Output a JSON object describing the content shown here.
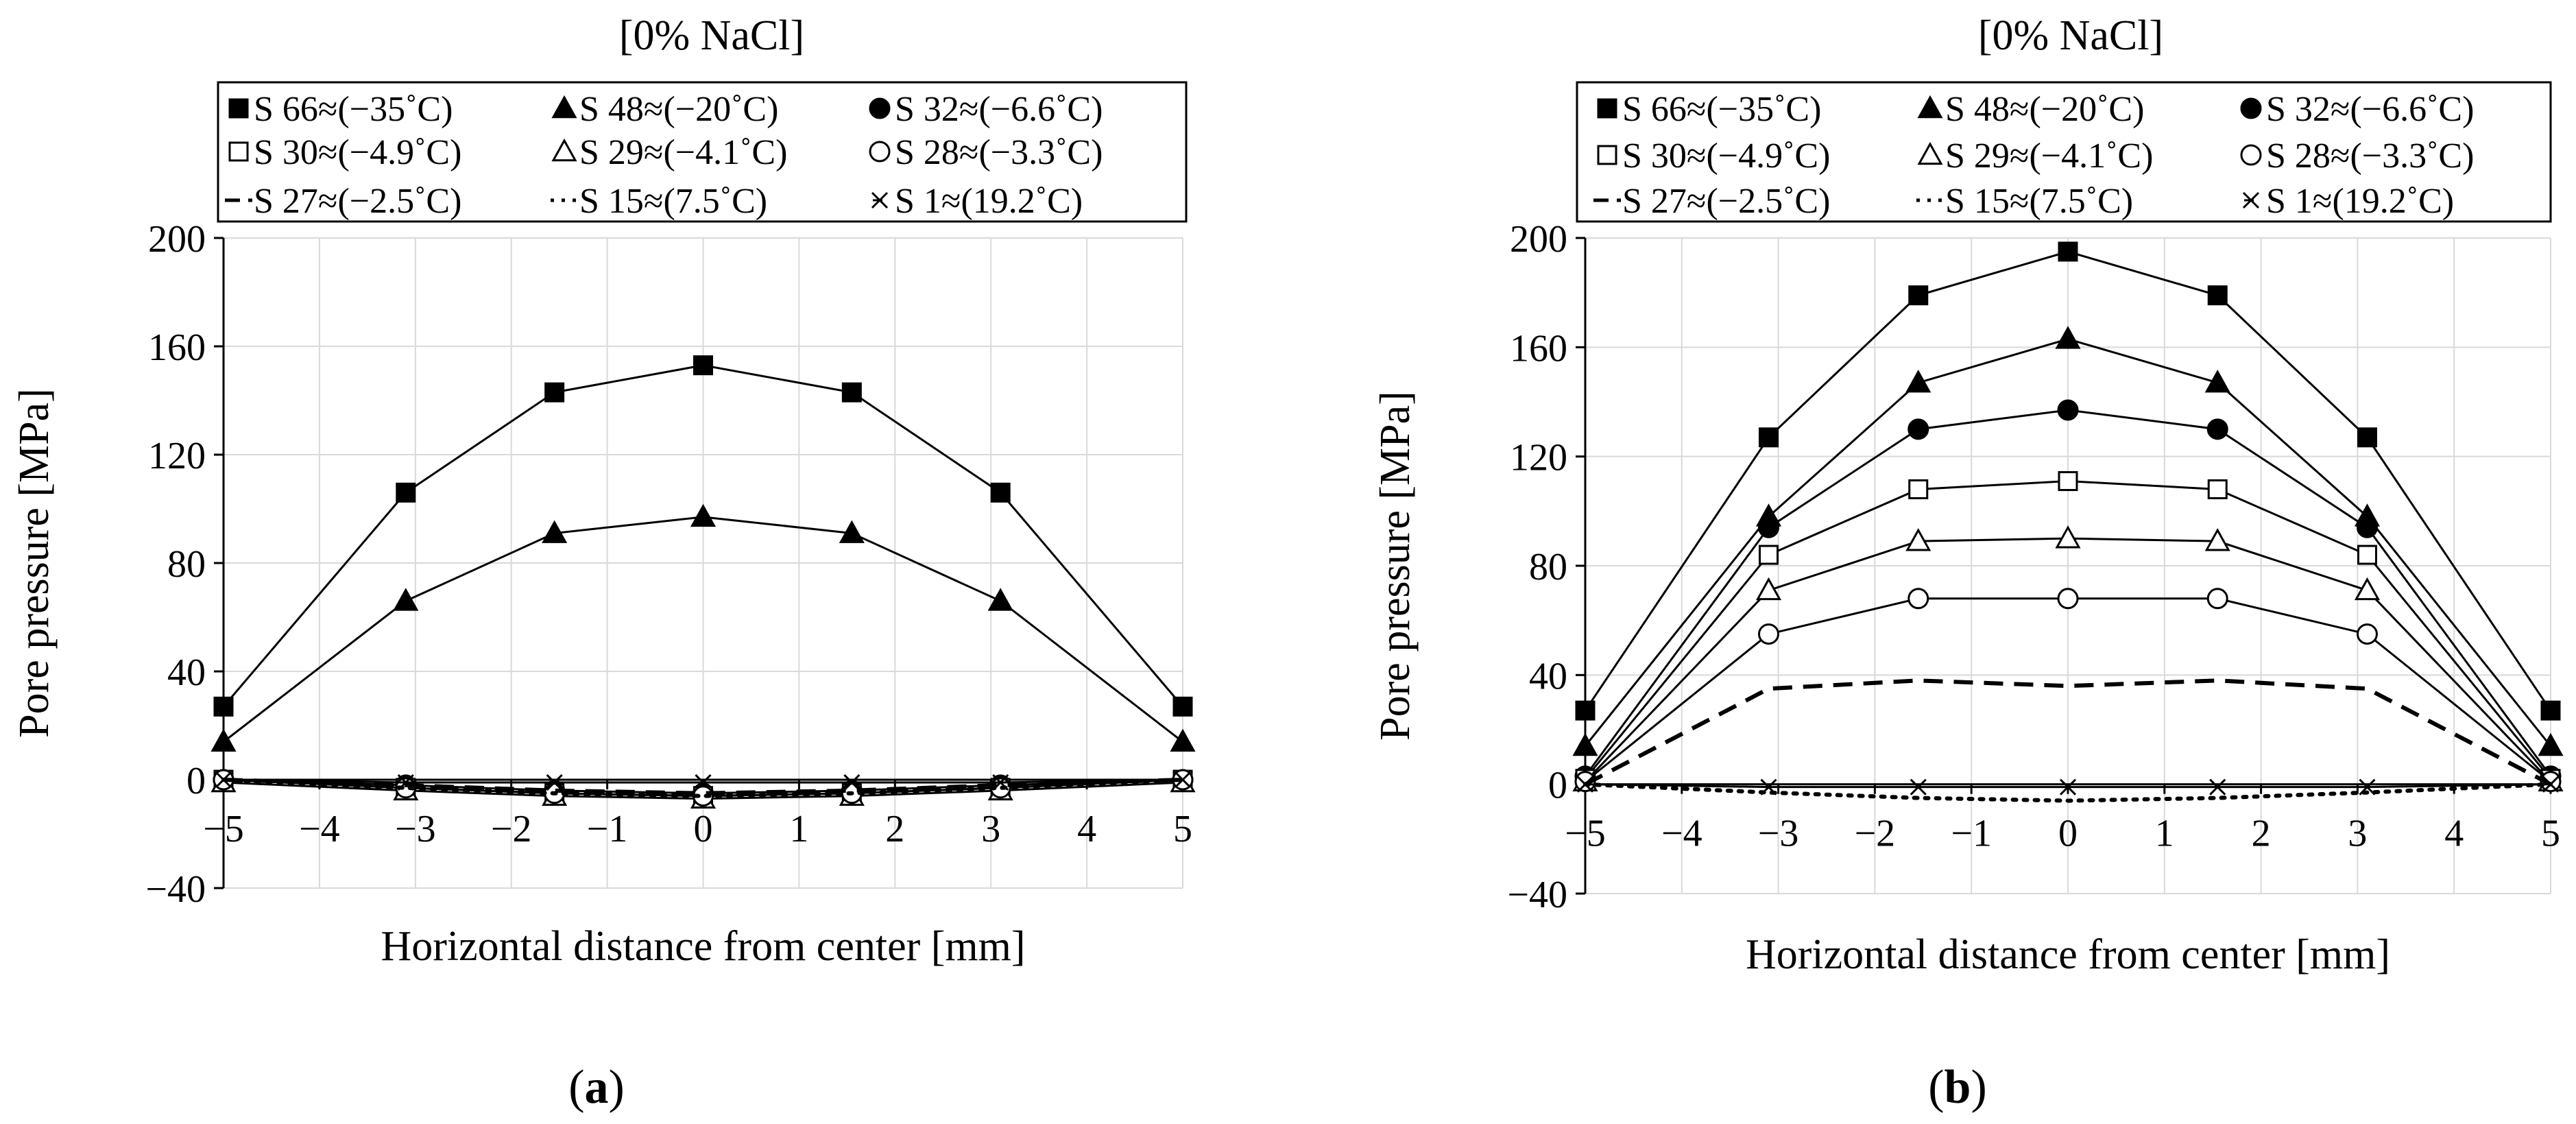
{
  "figure": {
    "panels": [
      {
        "label_open": "(",
        "label_letter": "a",
        "label_close": ")"
      },
      {
        "label_open": "(",
        "label_letter": "b",
        "label_close": ")"
      }
    ]
  },
  "chart_data": [
    {
      "type": "line",
      "title": "[0% NaCl]",
      "xlabel": "Horizontal distance from center [mm]",
      "ylabel": "Pore pressure [MPa]",
      "xlim": [
        -5,
        5
      ],
      "ylim": [
        -40,
        200
      ],
      "xticks": [
        -5,
        -4,
        -3,
        -2,
        -1,
        0,
        1,
        2,
        3,
        4,
        5
      ],
      "yticks": [
        -40,
        0,
        40,
        80,
        120,
        160,
        200
      ],
      "grid": true,
      "legend_position": "top",
      "x": [
        -5,
        -3.1,
        -1.55,
        0,
        1.55,
        3.1,
        5
      ],
      "series": [
        {
          "name": "S 66≈(−35˚C)",
          "marker": "square-filled",
          "line": "solid",
          "values": [
            27,
            106,
            143,
            153,
            143,
            106,
            27
          ]
        },
        {
          "name": "S 48≈(−20˚C)",
          "marker": "triangle-filled",
          "line": "solid",
          "values": [
            14,
            66,
            91,
            97,
            91,
            66,
            14
          ]
        },
        {
          "name": "S 32≈(−6.6˚C)",
          "marker": "circle-filled",
          "line": "solid",
          "values": [
            0,
            -2,
            -4,
            -5,
            -4,
            -2,
            0
          ]
        },
        {
          "name": "S 30≈(−4.9˚C)",
          "marker": "square-open",
          "line": "solid",
          "values": [
            0,
            -3,
            -5,
            -6,
            -5,
            -3,
            0
          ]
        },
        {
          "name": "S 29≈(−4.1˚C)",
          "marker": "triangle-open",
          "line": "solid",
          "values": [
            -1,
            -4,
            -6,
            -7,
            -6,
            -4,
            -1
          ]
        },
        {
          "name": "S 28≈(−3.3˚C)",
          "marker": "circle-open",
          "line": "solid",
          "values": [
            0,
            -3,
            -5,
            -6,
            -5,
            -3,
            0
          ]
        },
        {
          "name": "S 27≈(−2.5˚C)",
          "marker": "none",
          "line": "dashed",
          "values": [
            0,
            -2,
            -4,
            -5,
            -4,
            -2,
            0
          ]
        },
        {
          "name": "S 15≈(7.5˚C)",
          "marker": "none",
          "line": "dotted",
          "values": [
            0,
            -3,
            -5,
            -6,
            -5,
            -3,
            0
          ]
        },
        {
          "name": "S 1≈(19.2˚C)",
          "marker": "x",
          "line": "solid",
          "values": [
            0,
            -1,
            -1,
            -1,
            -1,
            -1,
            0
          ]
        }
      ]
    },
    {
      "type": "line",
      "title": "[0% NaCl]",
      "xlabel": "Horizontal distance from center [mm]",
      "ylabel": "Pore pressure [MPa]",
      "xlim": [
        -5,
        5
      ],
      "ylim": [
        -40,
        200
      ],
      "xticks": [
        -5,
        -4,
        -3,
        -2,
        -1,
        0,
        1,
        2,
        3,
        4,
        5
      ],
      "yticks": [
        -40,
        0,
        40,
        80,
        120,
        160,
        200
      ],
      "grid": true,
      "legend_position": "top",
      "x": [
        -5,
        -3.1,
        -1.55,
        0,
        1.55,
        3.1,
        5
      ],
      "series": [
        {
          "name": "S 66≈(−35˚C)",
          "marker": "square-filled",
          "line": "solid",
          "values": [
            27,
            127,
            179,
            195,
            179,
            127,
            27
          ]
        },
        {
          "name": "S 48≈(−20˚C)",
          "marker": "triangle-filled",
          "line": "solid",
          "values": [
            14,
            98,
            147,
            163,
            147,
            98,
            14
          ]
        },
        {
          "name": "S 32≈(−6.6˚C)",
          "marker": "circle-filled",
          "line": "solid",
          "values": [
            3,
            94,
            130,
            137,
            130,
            94,
            3
          ]
        },
        {
          "name": "S 30≈(−4.9˚C)",
          "marker": "square-open",
          "line": "solid",
          "values": [
            2,
            84,
            108,
            111,
            108,
            84,
            2
          ]
        },
        {
          "name": "S 29≈(−4.1˚C)",
          "marker": "triangle-open",
          "line": "solid",
          "values": [
            1,
            71,
            89,
            90,
            89,
            71,
            1
          ]
        },
        {
          "name": "S 28≈(−3.3˚C)",
          "marker": "circle-open",
          "line": "solid",
          "values": [
            1,
            55,
            68,
            68,
            68,
            55,
            1
          ]
        },
        {
          "name": "S 27≈(−2.5˚C)",
          "marker": "none",
          "line": "dashed",
          "values": [
            0,
            35,
            38,
            36,
            38,
            35,
            0
          ]
        },
        {
          "name": "S 15≈(7.5˚C)",
          "marker": "none",
          "line": "dotted",
          "values": [
            0,
            -3,
            -5,
            -6,
            -5,
            -3,
            0
          ]
        },
        {
          "name": "S 1≈(19.2˚C)",
          "marker": "x",
          "line": "solid",
          "values": [
            0,
            -1,
            -1,
            -1,
            -1,
            -1,
            0
          ]
        }
      ]
    }
  ]
}
